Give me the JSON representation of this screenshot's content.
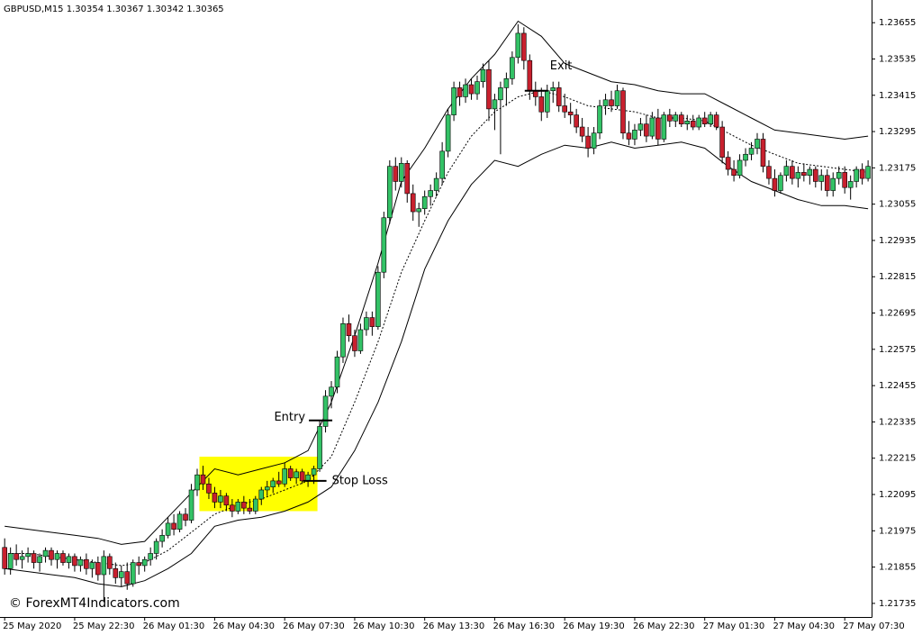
{
  "chart_data": {
    "type": "candlestick",
    "title": "GBPUSD,M15  1.30354 1.30367 1.30342 1.30365",
    "watermark": "© ForexMT4Indicators.com",
    "up_color": "#33c266",
    "down_color": "#c8202e",
    "wick_color": "#000000",
    "grid": false,
    "xlim": [
      -0.8,
      148.6
    ],
    "ylim": [
      1.2169,
      1.2373
    ],
    "yticks": [
      1.23655,
      1.23535,
      1.23415,
      1.23295,
      1.23175,
      1.23055,
      1.22935,
      1.22815,
      1.22695,
      1.22575,
      1.22455,
      1.22335,
      1.22215,
      1.22095,
      1.21975,
      1.21855,
      1.21735
    ],
    "xticks": [
      {
        "value": 0,
        "label": "25 May 2020"
      },
      {
        "value": 12,
        "label": "25 May 22:30"
      },
      {
        "value": 24,
        "label": "26 May 01:30"
      },
      {
        "value": 36,
        "label": "26 May 04:30"
      },
      {
        "value": 48,
        "label": "26 May 07:30"
      },
      {
        "value": 60,
        "label": "26 May 10:30"
      },
      {
        "value": 72,
        "label": "26 May 13:30"
      },
      {
        "value": 84,
        "label": "26 May 16:30"
      },
      {
        "value": 96,
        "label": "26 May 19:30"
      },
      {
        "value": 108,
        "label": "26 May 22:30"
      },
      {
        "value": 120,
        "label": "27 May 01:30"
      },
      {
        "value": 132,
        "label": "27 May 04:30"
      },
      {
        "value": 144,
        "label": "27 May 07:30"
      }
    ],
    "candles": [
      [
        1.2192,
        1.2195,
        1.2183,
        1.2185
      ],
      [
        1.2185,
        1.2192,
        1.2183,
        1.219
      ],
      [
        1.219,
        1.2193,
        1.2186,
        1.2188
      ],
      [
        1.2188,
        1.2191,
        1.2185,
        1.2189
      ],
      [
        1.2189,
        1.2192,
        1.2187,
        1.219
      ],
      [
        1.219,
        1.2191,
        1.2185,
        1.2187
      ],
      [
        1.2187,
        1.219,
        1.2184,
        1.2189
      ],
      [
        1.2189,
        1.2192,
        1.2187,
        1.2191
      ],
      [
        1.2191,
        1.2192,
        1.2186,
        1.2188
      ],
      [
        1.2188,
        1.2191,
        1.2185,
        1.219
      ],
      [
        1.219,
        1.2191,
        1.2186,
        1.2187
      ],
      [
        1.2187,
        1.219,
        1.2185,
        1.2189
      ],
      [
        1.2189,
        1.219,
        1.2184,
        1.2186
      ],
      [
        1.2186,
        1.2189,
        1.2184,
        1.2188
      ],
      [
        1.2188,
        1.219,
        1.2183,
        1.2185
      ],
      [
        1.2185,
        1.2188,
        1.2182,
        1.2187
      ],
      [
        1.2187,
        1.2189,
        1.2181,
        1.2183
      ],
      [
        1.2183,
        1.2191,
        1.2174,
        1.2189
      ],
      [
        1.2189,
        1.219,
        1.2183,
        1.2185
      ],
      [
        1.2185,
        1.2187,
        1.218,
        1.2182
      ],
      [
        1.2182,
        1.2186,
        1.2179,
        1.2184
      ],
      [
        1.2184,
        1.2187,
        1.2178,
        1.218
      ],
      [
        1.218,
        1.2188,
        1.2179,
        1.2187
      ],
      [
        1.2187,
        1.2189,
        1.2183,
        1.2186
      ],
      [
        1.2186,
        1.2189,
        1.2184,
        1.2188
      ],
      [
        1.2188,
        1.2192,
        1.2186,
        1.219
      ],
      [
        1.219,
        1.2195,
        1.2188,
        1.2194
      ],
      [
        1.2194,
        1.2198,
        1.2192,
        1.2196
      ],
      [
        1.2196,
        1.2202,
        1.2195,
        1.22
      ],
      [
        1.22,
        1.2203,
        1.2196,
        1.2198
      ],
      [
        1.2198,
        1.2204,
        1.2197,
        1.2203
      ],
      [
        1.2203,
        1.2205,
        1.2199,
        1.2201
      ],
      [
        1.2201,
        1.2213,
        1.22,
        1.2211
      ],
      [
        1.2211,
        1.2218,
        1.2209,
        1.2216
      ],
      [
        1.2216,
        1.2219,
        1.2211,
        1.2213
      ],
      [
        1.2213,
        1.2215,
        1.2208,
        1.221
      ],
      [
        1.221,
        1.2212,
        1.2205,
        1.2207
      ],
      [
        1.2207,
        1.2211,
        1.2205,
        1.2209
      ],
      [
        1.2209,
        1.221,
        1.2204,
        1.2206
      ],
      [
        1.2206,
        1.2208,
        1.2202,
        1.2204
      ],
      [
        1.2204,
        1.2208,
        1.2203,
        1.2207
      ],
      [
        1.2207,
        1.2209,
        1.2203,
        1.2205
      ],
      [
        1.2205,
        1.2208,
        1.2203,
        1.2204
      ],
      [
        1.2204,
        1.2209,
        1.2203,
        1.2208
      ],
      [
        1.2208,
        1.2212,
        1.2206,
        1.2211
      ],
      [
        1.2211,
        1.2214,
        1.2209,
        1.2212
      ],
      [
        1.2212,
        1.2215,
        1.221,
        1.2214
      ],
      [
        1.2214,
        1.2217,
        1.2212,
        1.2213
      ],
      [
        1.2213,
        1.222,
        1.2212,
        1.2218
      ],
      [
        1.2218,
        1.2219,
        1.2214,
        1.2215
      ],
      [
        1.2215,
        1.2218,
        1.2213,
        1.2217
      ],
      [
        1.2217,
        1.2218,
        1.2213,
        1.2214
      ],
      [
        1.2214,
        1.2217,
        1.2212,
        1.2216
      ],
      [
        1.2216,
        1.2219,
        1.2213,
        1.2218
      ],
      [
        1.2218,
        1.2234,
        1.2217,
        1.2232
      ],
      [
        1.2232,
        1.2244,
        1.223,
        1.2242
      ],
      [
        1.2242,
        1.2247,
        1.2238,
        1.2245
      ],
      [
        1.2245,
        1.2257,
        1.2243,
        1.2255
      ],
      [
        1.2255,
        1.2268,
        1.2253,
        1.2266
      ],
      [
        1.2266,
        1.2269,
        1.226,
        1.2262
      ],
      [
        1.2262,
        1.2264,
        1.2255,
        1.2257
      ],
      [
        1.2257,
        1.2266,
        1.2256,
        1.2264
      ],
      [
        1.2264,
        1.227,
        1.2262,
        1.2268
      ],
      [
        1.2268,
        1.227,
        1.2262,
        1.2265
      ],
      [
        1.2265,
        1.2285,
        1.2264,
        1.2283
      ],
      [
        1.2283,
        1.2303,
        1.2281,
        1.2301
      ],
      [
        1.2301,
        1.232,
        1.2299,
        1.2318
      ],
      [
        1.2318,
        1.2321,
        1.231,
        1.2313
      ],
      [
        1.2313,
        1.2321,
        1.2311,
        1.2319
      ],
      [
        1.2319,
        1.232,
        1.2306,
        1.2309
      ],
      [
        1.2309,
        1.2312,
        1.23,
        1.2303
      ],
      [
        1.2303,
        1.2306,
        1.2298,
        1.2304
      ],
      [
        1.2304,
        1.231,
        1.2302,
        1.2308
      ],
      [
        1.2308,
        1.2312,
        1.2305,
        1.231
      ],
      [
        1.231,
        1.2316,
        1.2308,
        1.2314
      ],
      [
        1.2314,
        1.2326,
        1.2312,
        1.2323
      ],
      [
        1.2323,
        1.2337,
        1.2321,
        1.2335
      ],
      [
        1.2335,
        1.2346,
        1.2333,
        1.2344
      ],
      [
        1.2344,
        1.2346,
        1.2338,
        1.2341
      ],
      [
        1.2341,
        1.2347,
        1.2339,
        1.2345
      ],
      [
        1.2345,
        1.2347,
        1.234,
        1.2342
      ],
      [
        1.2342,
        1.2348,
        1.234,
        1.2346
      ],
      [
        1.2346,
        1.2352,
        1.2344,
        1.235
      ],
      [
        1.235,
        1.2353,
        1.2333,
        1.2337
      ],
      [
        1.2337,
        1.2342,
        1.233,
        1.234
      ],
      [
        1.234,
        1.2346,
        1.2322,
        1.2344
      ],
      [
        1.2344,
        1.2349,
        1.2338,
        1.2347
      ],
      [
        1.2347,
        1.2356,
        1.2345,
        1.2354
      ],
      [
        1.2354,
        1.2365,
        1.2352,
        1.2362
      ],
      [
        1.2362,
        1.2364,
        1.235,
        1.2353
      ],
      [
        1.2353,
        1.2355,
        1.234,
        1.2343
      ],
      [
        1.2343,
        1.2346,
        1.2338,
        1.2341
      ],
      [
        1.2341,
        1.2344,
        1.2333,
        1.2336
      ],
      [
        1.2336,
        1.2345,
        1.2334,
        1.2343
      ],
      [
        1.2343,
        1.2346,
        1.2339,
        1.2344
      ],
      [
        1.2344,
        1.2346,
        1.2336,
        1.2338
      ],
      [
        1.2338,
        1.2342,
        1.2334,
        1.2336
      ],
      [
        1.2336,
        1.2339,
        1.2332,
        1.2335
      ],
      [
        1.2335,
        1.2337,
        1.2329,
        1.2331
      ],
      [
        1.2331,
        1.2334,
        1.2326,
        1.2328
      ],
      [
        1.2328,
        1.2331,
        1.2321,
        1.2324
      ],
      [
        1.2324,
        1.2331,
        1.2322,
        1.2329
      ],
      [
        1.2329,
        1.234,
        1.2327,
        1.2338
      ],
      [
        1.2338,
        1.2342,
        1.2335,
        1.234
      ],
      [
        1.234,
        1.2343,
        1.2336,
        1.2338
      ],
      [
        1.2338,
        1.2345,
        1.2337,
        1.2343
      ],
      [
        1.2343,
        1.2344,
        1.2327,
        1.2329
      ],
      [
        1.2329,
        1.2333,
        1.2325,
        1.2327
      ],
      [
        1.2327,
        1.2332,
        1.2325,
        1.233
      ],
      [
        1.233,
        1.2334,
        1.2328,
        1.2332
      ],
      [
        1.2332,
        1.2335,
        1.2326,
        1.2328
      ],
      [
        1.2328,
        1.2336,
        1.2327,
        1.2334
      ],
      [
        1.2334,
        1.2337,
        1.2325,
        1.2327
      ],
      [
        1.2327,
        1.2336,
        1.2326,
        1.2335
      ],
      [
        1.2335,
        1.2337,
        1.2331,
        1.2333
      ],
      [
        1.2333,
        1.2336,
        1.2331,
        1.2335
      ],
      [
        1.2335,
        1.2336,
        1.2331,
        1.2332
      ],
      [
        1.2332,
        1.2335,
        1.233,
        1.2333
      ],
      [
        1.2333,
        1.2335,
        1.233,
        1.2331
      ],
      [
        1.2331,
        1.2335,
        1.233,
        1.2334
      ],
      [
        1.2334,
        1.2336,
        1.2331,
        1.2332
      ],
      [
        1.2332,
        1.2336,
        1.2331,
        1.2335
      ],
      [
        1.2335,
        1.2336,
        1.233,
        1.2331
      ],
      [
        1.2331,
        1.2333,
        1.2319,
        1.2321
      ],
      [
        1.2321,
        1.2323,
        1.2315,
        1.2317
      ],
      [
        1.2317,
        1.232,
        1.2313,
        1.2315
      ],
      [
        1.2315,
        1.2322,
        1.2314,
        1.232
      ],
      [
        1.232,
        1.2324,
        1.2318,
        1.2322
      ],
      [
        1.2322,
        1.2326,
        1.232,
        1.2324
      ],
      [
        1.2324,
        1.2329,
        1.2322,
        1.2327
      ],
      [
        1.2327,
        1.2329,
        1.2316,
        1.2318
      ],
      [
        1.2318,
        1.232,
        1.2312,
        1.2314
      ],
      [
        1.2314,
        1.2317,
        1.2308,
        1.231
      ],
      [
        1.231,
        1.2316,
        1.2309,
        1.2315
      ],
      [
        1.2315,
        1.232,
        1.2313,
        1.2318
      ],
      [
        1.2318,
        1.232,
        1.2312,
        1.2314
      ],
      [
        1.2314,
        1.2318,
        1.2311,
        1.2316
      ],
      [
        1.2316,
        1.2319,
        1.2313,
        1.2315
      ],
      [
        1.2315,
        1.2318,
        1.2312,
        1.2317
      ],
      [
        1.2317,
        1.2318,
        1.2311,
        1.2313
      ],
      [
        1.2313,
        1.2317,
        1.231,
        1.2315
      ],
      [
        1.2315,
        1.2317,
        1.2308,
        1.231
      ],
      [
        1.231,
        1.2316,
        1.2308,
        1.2314
      ],
      [
        1.2314,
        1.2318,
        1.2312,
        1.2316
      ],
      [
        1.2316,
        1.2318,
        1.2309,
        1.2311
      ],
      [
        1.2311,
        1.2315,
        1.2307,
        1.2313
      ],
      [
        1.2313,
        1.2318,
        1.2311,
        1.2317
      ],
      [
        1.2317,
        1.2319,
        1.2312,
        1.2314
      ],
      [
        1.2314,
        1.232,
        1.2313,
        1.2318
      ]
    ],
    "bands": {
      "x": [
        0,
        4,
        8,
        12,
        16,
        20,
        24,
        28,
        32,
        36,
        40,
        44,
        48,
        52,
        56,
        60,
        64,
        68,
        72,
        76,
        80,
        84,
        88,
        92,
        96,
        100,
        104,
        108,
        112,
        116,
        120,
        124,
        128,
        132,
        136,
        140,
        144,
        148
      ],
      "series": [
        {
          "color": "#000000",
          "dashed": false,
          "values": [
            1.2199,
            1.2198,
            1.2197,
            1.2196,
            1.2195,
            1.2193,
            1.2194,
            1.2202,
            1.221,
            1.2218,
            1.2216,
            1.2218,
            1.222,
            1.2224,
            1.224,
            1.2262,
            1.2286,
            1.2313,
            1.2324,
            1.2337,
            1.2347,
            1.2355,
            1.2366,
            1.2361,
            1.2352,
            1.2349,
            1.2346,
            1.2345,
            1.2343,
            1.2342,
            1.2342,
            1.2338,
            1.2334,
            1.233,
            1.2329,
            1.2328,
            1.2327,
            1.2328
          ]
        },
        {
          "color": "#000000",
          "dashed": true,
          "values": [
            1.219,
            1.219,
            1.2189,
            1.2188,
            1.2187,
            1.2186,
            1.2187,
            1.2191,
            1.2197,
            1.2203,
            1.2206,
            1.2208,
            1.2211,
            1.2214,
            1.2222,
            1.224,
            1.226,
            1.2283,
            1.23,
            1.2316,
            1.2328,
            1.2336,
            1.2341,
            1.2343,
            1.2341,
            1.2338,
            1.2337,
            1.2336,
            1.2334,
            1.2334,
            1.2333,
            1.2329,
            1.2325,
            1.2322,
            1.2319,
            1.2318,
            1.2317,
            1.2316
          ]
        },
        {
          "color": "#000000",
          "dashed": false,
          "values": [
            1.2185,
            1.2184,
            1.2183,
            1.2182,
            1.218,
            1.2179,
            1.2181,
            1.2185,
            1.219,
            1.2199,
            1.2201,
            1.2202,
            1.2204,
            1.2207,
            1.2212,
            1.2224,
            1.224,
            1.226,
            1.2284,
            1.23,
            1.2312,
            1.232,
            1.2318,
            1.2322,
            1.2325,
            1.2324,
            1.2326,
            1.2324,
            1.2325,
            1.2326,
            1.2324,
            1.2318,
            1.2313,
            1.231,
            1.2307,
            1.2305,
            1.2305,
            1.2304
          ]
        }
      ]
    },
    "highlight": {
      "color": "#ffff00",
      "from": 34,
      "to": 53,
      "low": 1.2204,
      "high": 1.2222
    },
    "annotations": [
      {
        "label": "Entry",
        "index": 54,
        "price": 1.2234,
        "side": "left"
      },
      {
        "label": "Stop Loss",
        "index": 53,
        "price": 1.2214,
        "side": "right"
      },
      {
        "label": "Exit",
        "index": 91,
        "price": 1.2343,
        "side": "above"
      }
    ]
  }
}
